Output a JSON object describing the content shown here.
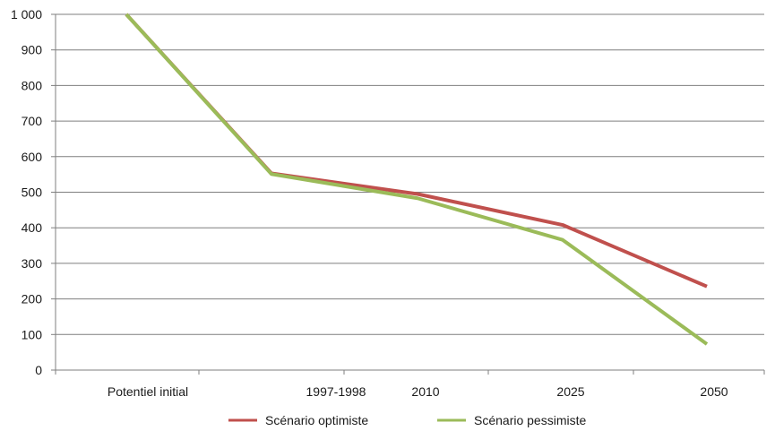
{
  "chart_data": {
    "type": "line",
    "title": "",
    "xlabel": "",
    "ylabel": "",
    "categories": [
      "Potentiel initial",
      "",
      "1997-1998",
      "2010",
      "2025",
      "2050"
    ],
    "y_tick_labels": [
      "0",
      "100",
      "200",
      "300",
      "400",
      "500",
      "600",
      "700",
      "800",
      "900",
      "1 000"
    ],
    "ylim": [
      0,
      1000
    ],
    "grid": true,
    "legend_position": "bottom",
    "series": [
      {
        "name": "Scénario optimiste",
        "color": "#c0504d",
        "x": [
          "Potentiel initial",
          "1997-1998",
          "2010",
          "2025",
          "2050"
        ],
        "values": [
          1000,
          553,
          495,
          408,
          235
        ]
      },
      {
        "name": "Scénario pessimiste",
        "color": "#9bbb59",
        "x": [
          "Potentiel initial",
          "1997-1998",
          "2010",
          "2025",
          "2050"
        ],
        "values": [
          1000,
          551,
          483,
          366,
          73
        ]
      }
    ]
  }
}
